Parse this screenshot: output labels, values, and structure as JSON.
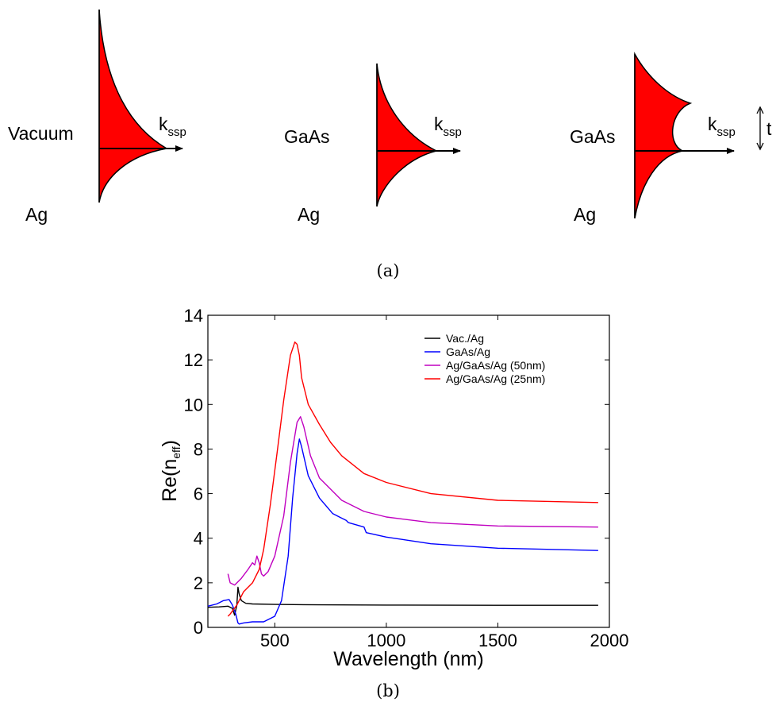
{
  "panel_a": {
    "caption": "(a)",
    "diagrams": [
      {
        "upper_label": "Vacuum",
        "lower_label": "Ag",
        "k_main": "k",
        "k_sub": "ssp"
      },
      {
        "upper_label": "GaAs",
        "lower_label": "Ag",
        "k_main": "k",
        "k_sub": "ssp"
      },
      {
        "upper_label": "GaAs",
        "lower_label": "Ag",
        "k_main": "k",
        "k_sub": "ssp",
        "thickness_label": "t"
      }
    ],
    "field_color": "#ff0000"
  },
  "panel_b": {
    "caption": "(b)"
  },
  "chart_data": {
    "type": "line",
    "title": "",
    "xlabel": "Wavelength (nm)",
    "ylabel_main": "Re(n",
    "ylabel_sub": "eff",
    "ylabel_end": ")",
    "xlim": [
      200,
      2000
    ],
    "ylim": [
      0,
      14
    ],
    "xticks": [
      500,
      1000,
      1500,
      2000
    ],
    "yticks": [
      0,
      2,
      4,
      6,
      8,
      10,
      12,
      14
    ],
    "grid": false,
    "legend_position": "top-right",
    "series": [
      {
        "name": "Vac./Ag",
        "color": "#000000",
        "x": [
          200,
          250,
          290,
          310,
          320,
          330,
          335,
          340,
          350,
          370,
          400,
          500,
          700,
          1000,
          1500,
          1950
        ],
        "y": [
          0.9,
          0.92,
          0.95,
          0.85,
          0.55,
          1.0,
          1.8,
          1.5,
          1.2,
          1.08,
          1.05,
          1.03,
          1.01,
          1.0,
          0.99,
          0.99
        ]
      },
      {
        "name": "GaAs/Ag",
        "color": "#0000ff",
        "x": [
          200,
          240,
          270,
          295,
          310,
          325,
          335,
          340,
          360,
          400,
          450,
          500,
          530,
          560,
          580,
          600,
          610,
          620,
          650,
          700,
          760,
          800,
          820,
          830,
          900,
          910,
          1000,
          1200,
          1500,
          1950
        ],
        "y": [
          0.95,
          1.05,
          1.2,
          1.25,
          1.0,
          0.6,
          0.2,
          0.15,
          0.2,
          0.25,
          0.25,
          0.5,
          1.2,
          3.2,
          5.8,
          7.8,
          8.45,
          8.1,
          6.8,
          5.8,
          5.1,
          4.9,
          4.8,
          4.7,
          4.5,
          4.25,
          4.05,
          3.75,
          3.55,
          3.45
        ]
      },
      {
        "name": "Ag/GaAs/Ag (50nm)",
        "color": "#c000c0",
        "x": [
          290,
          300,
          320,
          350,
          380,
          400,
          410,
          420,
          430,
          440,
          450,
          470,
          500,
          540,
          570,
          600,
          615,
          630,
          660,
          700,
          800,
          900,
          1000,
          1200,
          1500,
          1950
        ],
        "y": [
          2.4,
          2.0,
          1.9,
          2.2,
          2.6,
          2.9,
          2.8,
          3.2,
          2.9,
          2.4,
          2.3,
          2.5,
          3.2,
          5.0,
          7.4,
          9.2,
          9.45,
          9.0,
          7.7,
          6.7,
          5.7,
          5.2,
          4.95,
          4.7,
          4.55,
          4.5
        ]
      },
      {
        "name": "Ag/GaAs/Ag (25nm)",
        "color": "#ff0000",
        "x": [
          290,
          300,
          330,
          360,
          400,
          430,
          450,
          480,
          510,
          540,
          570,
          590,
          600,
          610,
          620,
          650,
          700,
          750,
          800,
          900,
          1000,
          1200,
          1500,
          1950
        ],
        "y": [
          0.5,
          0.6,
          1.0,
          1.6,
          2.0,
          2.6,
          3.5,
          5.5,
          7.8,
          10.2,
          12.2,
          12.8,
          12.7,
          12.2,
          11.2,
          10.0,
          9.1,
          8.3,
          7.7,
          6.9,
          6.5,
          6.0,
          5.7,
          5.6
        ]
      }
    ]
  }
}
